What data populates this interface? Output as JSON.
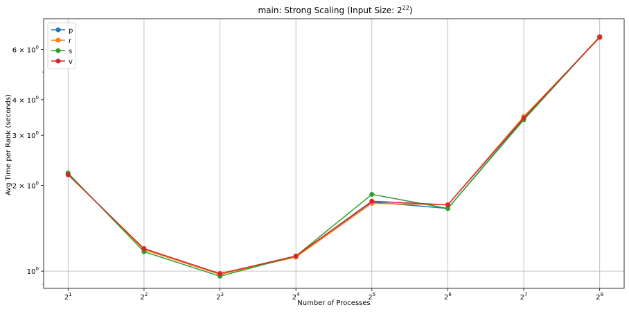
{
  "chart_data": {
    "type": "line",
    "title_main": "main: Strong Scaling (Input Size: 2",
    "title_exp": "22",
    "title_close": ")",
    "xlabel": "Number of Processes",
    "ylabel": "Avg Time per Rank (seconds)",
    "x_scale": "log2",
    "y_scale": "log10",
    "x": [
      2,
      4,
      8,
      16,
      32,
      64,
      128,
      256
    ],
    "x_ticks": [
      {
        "value": 2,
        "base": "2",
        "exp": "1"
      },
      {
        "value": 4,
        "base": "2",
        "exp": "2"
      },
      {
        "value": 8,
        "base": "2",
        "exp": "3"
      },
      {
        "value": 16,
        "base": "2",
        "exp": "4"
      },
      {
        "value": 32,
        "base": "2",
        "exp": "5"
      },
      {
        "value": 64,
        "base": "2",
        "exp": "6"
      },
      {
        "value": 128,
        "base": "2",
        "exp": "7"
      },
      {
        "value": 256,
        "base": "2",
        "exp": "8"
      }
    ],
    "y_ticks": [
      {
        "value": 1,
        "coef": "",
        "base": "10",
        "exp": "0"
      },
      {
        "value": 2,
        "coef": "2 × ",
        "base": "10",
        "exp": "0"
      },
      {
        "value": 3,
        "coef": "3 × ",
        "base": "10",
        "exp": "0"
      },
      {
        "value": 4,
        "coef": "4 × ",
        "base": "10",
        "exp": "0"
      },
      {
        "value": 6,
        "coef": "6 × ",
        "base": "10",
        "exp": "0"
      }
    ],
    "y_minor_ticks": [
      0.9,
      5
    ],
    "ylim": [
      0.87,
      7.7
    ],
    "grid": true,
    "legend_position": "top-left",
    "series": [
      {
        "name": "p",
        "color": "#1f77b4",
        "values": [
          2.19,
          1.19,
          0.975,
          1.13,
          1.75,
          1.66,
          3.42,
          6.65
        ]
      },
      {
        "name": "r",
        "color": "#ff7f0e",
        "values": [
          2.19,
          1.19,
          0.975,
          1.12,
          1.73,
          1.71,
          3.49,
          6.6
        ]
      },
      {
        "name": "s",
        "color": "#2ca02c",
        "values": [
          2.21,
          1.17,
          0.96,
          1.13,
          1.86,
          1.66,
          3.4,
          6.65
        ]
      },
      {
        "name": "v",
        "color": "#d62728",
        "values": [
          2.18,
          1.2,
          0.98,
          1.13,
          1.76,
          1.71,
          3.45,
          6.65
        ]
      }
    ]
  }
}
